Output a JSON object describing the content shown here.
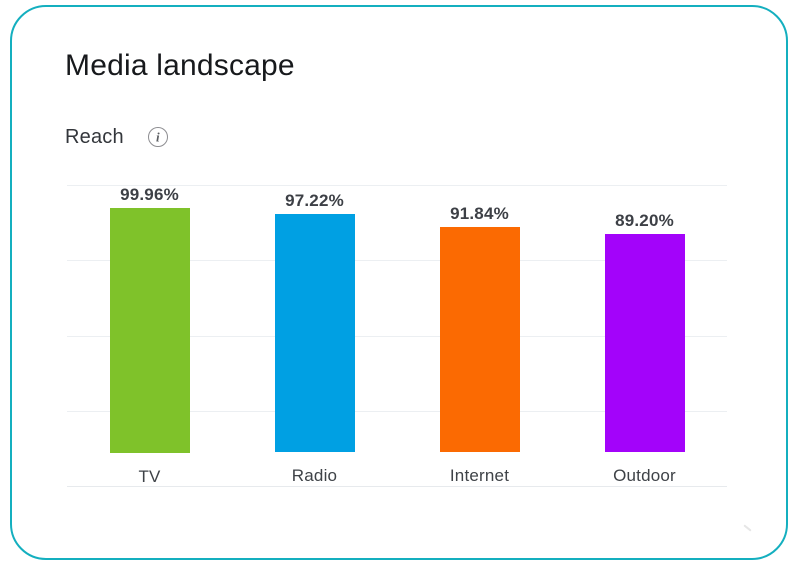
{
  "card": {
    "title": "Media landscape",
    "border_color": "#14AFBF",
    "section": {
      "label": "Reach",
      "info_icon": "info-circle-icon",
      "info_glyph": "i"
    }
  },
  "chart_data": {
    "type": "bar",
    "title": "Reach",
    "categories": [
      "TV",
      "Radio",
      "Internet",
      "Outdoor"
    ],
    "values": [
      99.96,
      97.22,
      91.84,
      89.2
    ],
    "value_labels": [
      "99.96%",
      "97.22%",
      "91.84%",
      "89.20%"
    ],
    "bar_colors": [
      "#7FC22A",
      "#00A0E3",
      "#FB6A02",
      "#A303FA"
    ],
    "xlabel": "",
    "ylabel": "",
    "ylim": [
      0,
      123
    ],
    "gridline_count": 5,
    "grid_on": true,
    "grid_color": "#ECEFF2",
    "baseline_color": "#E7EAED",
    "legend_position": "none",
    "value_label_color": "#3D4046",
    "category_label_color": "#3E4247"
  }
}
